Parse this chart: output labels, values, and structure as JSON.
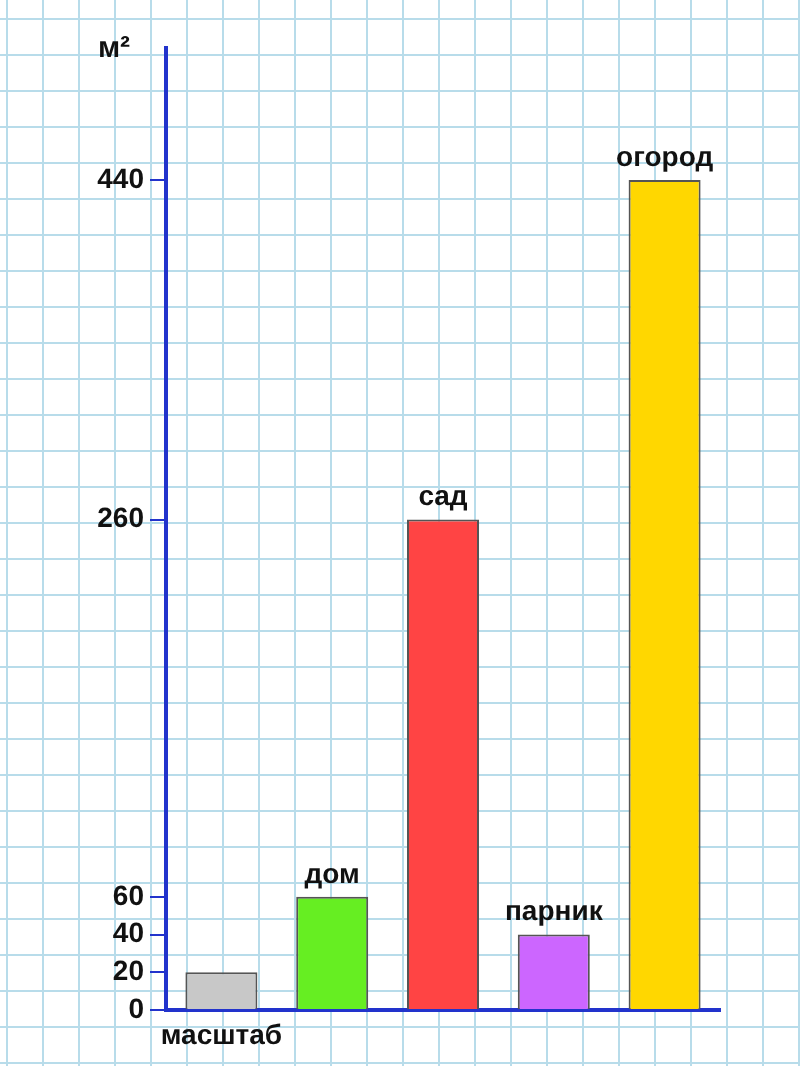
{
  "chart_data": {
    "type": "bar",
    "ylabel": "м²",
    "categories": [
      "масштаб",
      "дом",
      "сад",
      "парник",
      "огород"
    ],
    "values": [
      20,
      60,
      260,
      40,
      440
    ],
    "colors": [
      "#c8c8c8",
      "#66ee22",
      "#ff4444",
      "#cc66ff",
      "#ffd700"
    ],
    "ylim": [
      0,
      510
    ],
    "yticks": [
      0,
      20,
      40,
      60,
      260,
      440
    ],
    "grid": false,
    "legend": false
  }
}
